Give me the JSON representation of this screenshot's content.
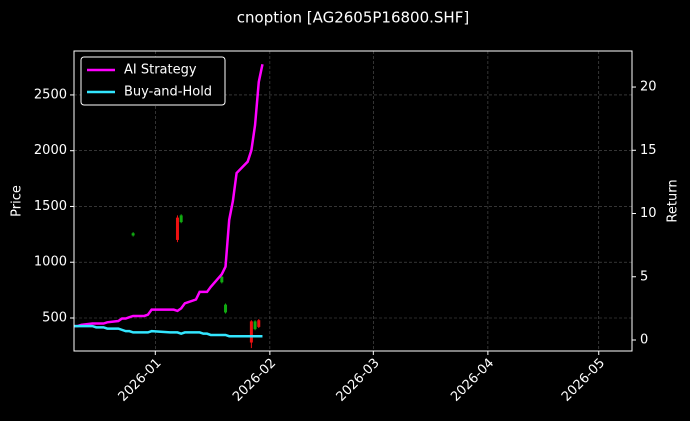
{
  "chart_data": {
    "type": "candlestick-line",
    "title": "cnoption [AG2605P16800.SHF]",
    "y_label": "Price",
    "y2_label": "Return",
    "x": [
      "2025-12-10",
      "2025-12-11",
      "2025-12-12",
      "2025-12-15",
      "2025-12-16",
      "2025-12-17",
      "2025-12-18",
      "2025-12-19",
      "2025-12-22",
      "2025-12-23",
      "2025-12-24",
      "2025-12-25",
      "2025-12-26",
      "2025-12-29",
      "2025-12-30",
      "2025-12-31",
      "2026-01-05",
      "2026-01-06",
      "2026-01-07",
      "2026-01-08",
      "2026-01-09",
      "2026-01-12",
      "2026-01-13",
      "2026-01-14",
      "2026-01-15",
      "2026-01-16",
      "2026-01-19",
      "2026-01-20",
      "2026-01-21",
      "2026-01-22",
      "2026-01-23",
      "2026-01-26",
      "2026-01-27",
      "2026-01-28",
      "2026-01-29",
      "2026-01-30"
    ],
    "series": [
      {
        "name": "AI Strategy",
        "color": "#ff00ff",
        "axis": "y2",
        "values": [
          1.1,
          1.1,
          1.2,
          1.3,
          1.3,
          1.3,
          1.3,
          1.4,
          1.5,
          1.7,
          1.7,
          1.8,
          1.9,
          1.9,
          2.0,
          2.4,
          2.4,
          2.4,
          2.3,
          2.5,
          2.9,
          3.2,
          3.8,
          3.8,
          3.8,
          4.2,
          5.2,
          5.8,
          9.5,
          11.0,
          13.2,
          14.1,
          15.0,
          17.0,
          20.4,
          21.8
        ]
      },
      {
        "name": "Buy-and-Hold",
        "color": "#33e6ff",
        "axis": "y2",
        "values": [
          1.1,
          1.1,
          1.1,
          1.1,
          1.0,
          1.0,
          1.0,
          0.9,
          0.9,
          0.8,
          0.7,
          0.7,
          0.6,
          0.6,
          0.6,
          0.7,
          0.6,
          0.6,
          0.6,
          0.5,
          0.6,
          0.6,
          0.6,
          0.5,
          0.5,
          0.4,
          0.4,
          0.4,
          0.3,
          0.3,
          0.3,
          0.3,
          0.3,
          0.3,
          0.3,
          0.3
        ]
      }
    ],
    "candles": {
      "up_color": "#11aa11",
      "down_color": "#ee1111",
      "x": [
        "2025-12-26",
        "2026-01-07",
        "2026-01-08",
        "2026-01-19",
        "2026-01-20",
        "2026-01-27",
        "2026-01-28",
        "2026-01-29"
      ],
      "open": [
        1240,
        1400,
        1360,
        820,
        550,
        470,
        400,
        480
      ],
      "high": [
        1270,
        1420,
        1430,
        880,
        630,
        480,
        480,
        490
      ],
      "low": [
        1230,
        1180,
        1350,
        810,
        540,
        230,
        390,
        410
      ],
      "close": [
        1260,
        1200,
        1420,
        870,
        620,
        280,
        470,
        420
      ]
    },
    "xlim": [
      "2025-12-10",
      "2026-05-10"
    ],
    "xticks": [
      {
        "value": "2026-01-01",
        "label": "2026-01"
      },
      {
        "value": "2026-02-01",
        "label": "2026-02"
      },
      {
        "value": "2026-03-01",
        "label": "2026-03"
      },
      {
        "value": "2026-04-01",
        "label": "2026-04"
      },
      {
        "value": "2026-05-01",
        "label": "2026-05"
      }
    ],
    "ylim": [
      204,
      2894
    ],
    "yticks": [
      500,
      1000,
      1500,
      2000,
      2500
    ],
    "y2lim": [
      -0.87,
      22.85
    ],
    "y2ticks": [
      0,
      5,
      10,
      15,
      20
    ],
    "grid": true,
    "legend": "upper left"
  }
}
